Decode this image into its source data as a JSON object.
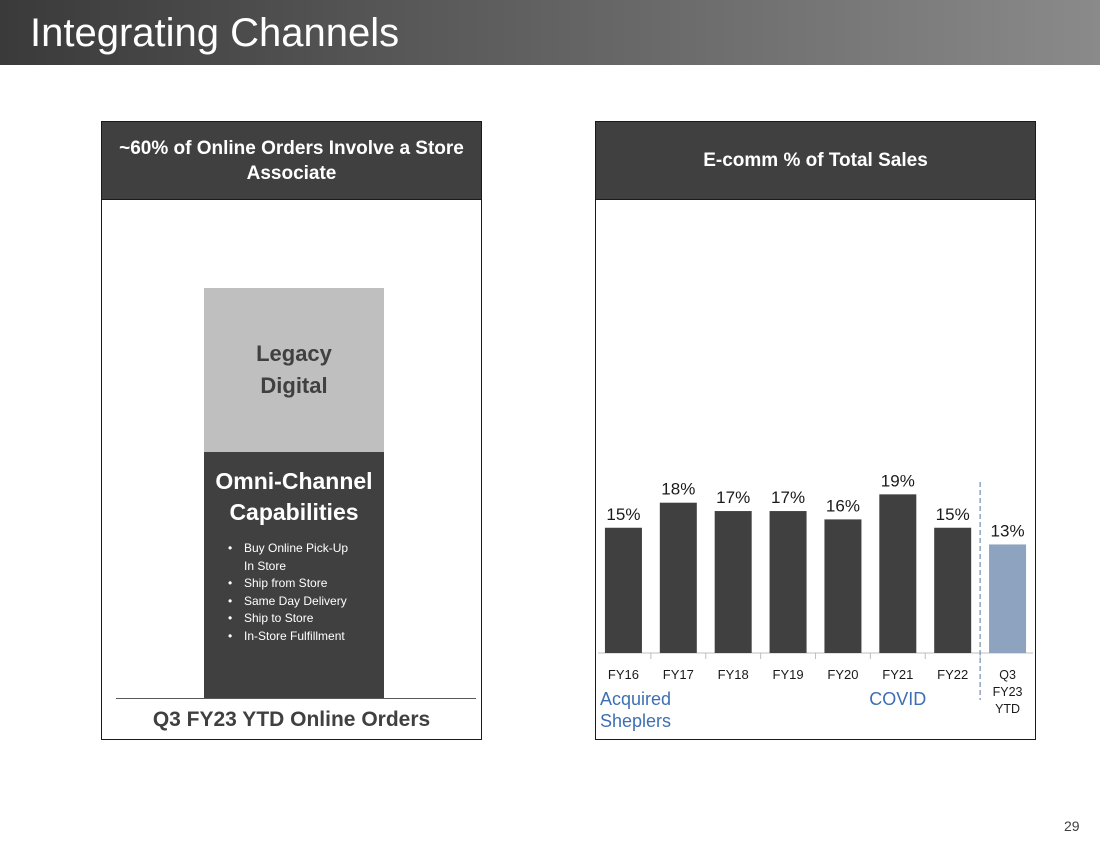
{
  "slide": {
    "title": "Integrating Channels",
    "page_number": "29"
  },
  "left_panel": {
    "header": "~60% of Online Orders Involve a Store Associate",
    "legacy_label": "Legacy Digital",
    "omni_title": "Omni-Channel Capabilities",
    "omni_items": [
      "Buy Online Pick-Up In Store",
      "Ship from Store",
      "Same Day Delivery",
      "Ship to Store",
      "In-Store Fulfillment"
    ],
    "caption": "Q3 FY23 YTD Online Orders",
    "colors": {
      "legacy": "#bfbfbf",
      "omni": "#404040"
    }
  },
  "right_panel": {
    "header": "E-comm % of Total Sales"
  },
  "chart_data": {
    "type": "bar",
    "title": "E-comm % of Total Sales",
    "categories": [
      "FY16",
      "FY17",
      "FY18",
      "FY19",
      "FY20",
      "FY21",
      "FY22",
      "Q3 FY23 YTD"
    ],
    "category_lines": [
      [
        "FY16"
      ],
      [
        "FY17"
      ],
      [
        "FY18"
      ],
      [
        "FY19"
      ],
      [
        "FY20"
      ],
      [
        "FY21"
      ],
      [
        "FY22"
      ],
      [
        "Q3",
        "FY23",
        "YTD"
      ]
    ],
    "values": [
      15,
      18,
      17,
      17,
      16,
      19,
      15,
      13
    ],
    "labels": [
      "15%",
      "18%",
      "17%",
      "17%",
      "16%",
      "19%",
      "15%",
      "13%"
    ],
    "unit": "%",
    "ylim": [
      0,
      20
    ],
    "xlabel": "",
    "ylabel": "",
    "colors": {
      "bar": "#404040",
      "highlight_bar": "#8ea3bf",
      "annotation": "#3d6fb4",
      "divider": "#7f95b4"
    },
    "highlight_index": 7,
    "annotations": [
      {
        "text_lines": [
          "Acquired",
          "Sheplers"
        ],
        "category": "FY16"
      },
      {
        "text_lines": [
          "COVID"
        ],
        "category": "FY21"
      }
    ],
    "divider_between": [
      "FY22",
      "Q3 FY23 YTD"
    ]
  }
}
